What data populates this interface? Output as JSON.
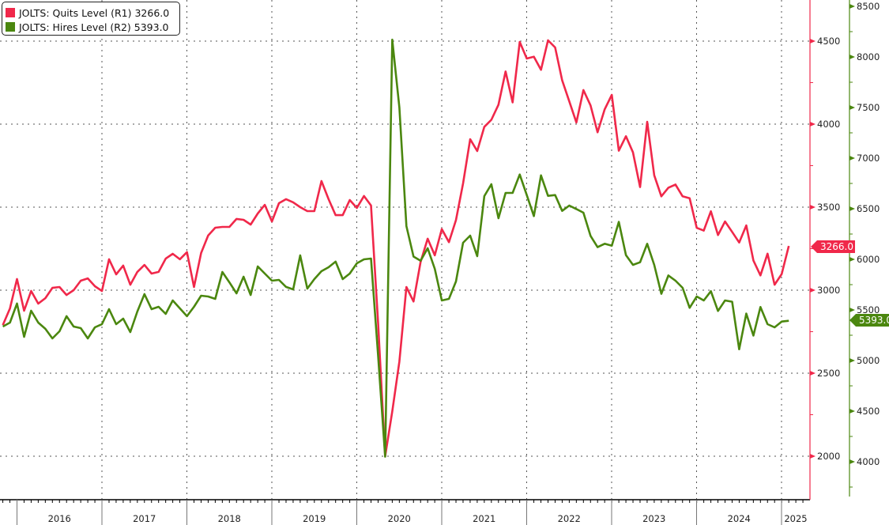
{
  "chart_data": {
    "type": "line",
    "frequency": "monthly",
    "start_month": "2015-10",
    "end_month": "2025-01",
    "x_tick_labels": [
      "2016",
      "2017",
      "2018",
      "2019",
      "2020",
      "2021",
      "2022",
      "2023",
      "2024",
      "2025"
    ],
    "grid": true,
    "legend_position": "top-left",
    "axes": {
      "R1": {
        "ylim": [
          1750,
          4750
        ],
        "ticks": [
          "2000",
          "2500",
          "3000",
          "3500",
          "4000",
          "4500"
        ],
        "color": "#f0284a"
      },
      "R2": {
        "ylim": [
          3700,
          8500
        ],
        "ticks": [
          "4000",
          "4500",
          "5000",
          "5500",
          "6000",
          "6500",
          "7000",
          "7500",
          "8000",
          "8500"
        ],
        "color": "#4b870f"
      }
    },
    "series": [
      {
        "name": "JOLTS: Quits Level (R1)",
        "legend_label": "JOLTS: Quits Level (R1) 3266.0",
        "last_value_tag": "3266.0",
        "axis": "R1",
        "color": "#f0284a",
        "values": [
          2790,
          2890,
          3067,
          2876,
          2995,
          2919,
          2952,
          3014,
          3019,
          2971,
          3000,
          3057,
          3071,
          3024,
          2995,
          3186,
          3095,
          3148,
          3033,
          3110,
          3152,
          3100,
          3110,
          3190,
          3219,
          3186,
          3229,
          3019,
          3224,
          3329,
          3376,
          3381,
          3381,
          3429,
          3424,
          3395,
          3462,
          3514,
          3414,
          3524,
          3548,
          3529,
          3500,
          3476,
          3476,
          3657,
          3548,
          3452,
          3452,
          3543,
          3495,
          3567,
          3510,
          2800,
          2000,
          2270,
          2570,
          3019,
          2932,
          3169,
          3310,
          3210,
          3368,
          3289,
          3422,
          3643,
          3909,
          3838,
          3984,
          4026,
          4117,
          4317,
          4131,
          4495,
          4395,
          4406,
          4327,
          4505,
          4462,
          4264,
          4137,
          4010,
          4205,
          4113,
          3951,
          4089,
          4176,
          3840,
          3927,
          3830,
          3621,
          4014,
          3692,
          3565,
          3617,
          3636,
          3565,
          3554,
          3375,
          3359,
          3475,
          3332,
          3414,
          3351,
          3287,
          3390,
          3179,
          3089,
          3220,
          3033,
          3097,
          3266
        ]
      },
      {
        "name": "JOLTS: Hires Level (R2)",
        "legend_label": "JOLTS: Hires Level (R2) 5393.0",
        "last_value_tag": "5393.0",
        "axis": "R2",
        "color": "#4b870f",
        "values": [
          5336,
          5375,
          5563,
          5234,
          5492,
          5375,
          5313,
          5219,
          5289,
          5438,
          5336,
          5320,
          5219,
          5328,
          5359,
          5508,
          5359,
          5414,
          5281,
          5484,
          5656,
          5508,
          5531,
          5461,
          5594,
          5516,
          5438,
          5531,
          5641,
          5633,
          5609,
          5875,
          5773,
          5664,
          5828,
          5648,
          5930,
          5859,
          5789,
          5797,
          5727,
          5703,
          6039,
          5711,
          5805,
          5883,
          5922,
          5977,
          5805,
          5859,
          5961,
          6000,
          6008,
          5047,
          4050,
          8170,
          7500,
          6328,
          6027,
          5986,
          6109,
          5906,
          5594,
          5609,
          5781,
          6164,
          6234,
          6031,
          6625,
          6742,
          6406,
          6656,
          6656,
          6838,
          6635,
          6427,
          6830,
          6627,
          6635,
          6479,
          6531,
          6497,
          6461,
          6232,
          6120,
          6154,
          6135,
          6370,
          6042,
          5945,
          5971,
          6154,
          5945,
          5659,
          5841,
          5789,
          5719,
          5521,
          5633,
          5594,
          5685,
          5490,
          5594,
          5581,
          5112,
          5464,
          5247,
          5529,
          5359,
          5328,
          5385,
          5393
        ]
      }
    ]
  }
}
